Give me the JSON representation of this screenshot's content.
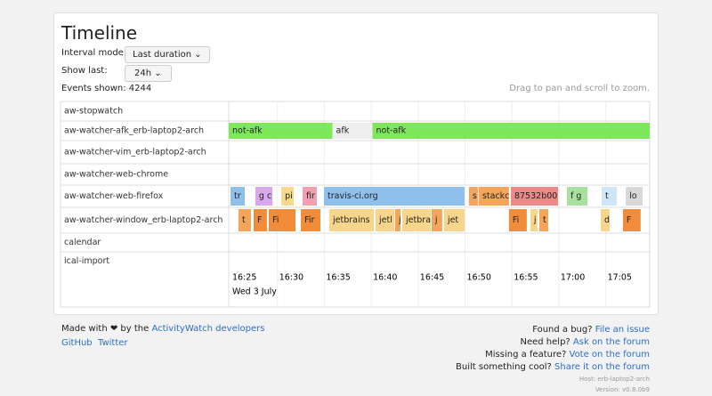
{
  "header": {
    "title": "Timeline"
  },
  "controls": {
    "interval_label": "Interval mode:",
    "interval_value": "Last duration",
    "show_label": "Show last:",
    "show_value": "24h",
    "events_label": "Events shown:",
    "events_count": "4244",
    "hint": "Drag to pan and scroll to zoom."
  },
  "timeline": {
    "rows": [
      {
        "label": "aw-stopwatch",
        "segments": []
      },
      {
        "label": "aw-watcher-afk_erb-laptop2-arch",
        "segments": [
          {
            "label": "not-afk",
            "start": "16:24:48",
            "end": "16:35:52",
            "color": "#7ce85a"
          },
          {
            "label": "afk",
            "start": "16:35:52",
            "end": "16:40:08",
            "color": "#eeeeee"
          },
          {
            "label": "not-afk",
            "start": "16:40:08",
            "end": "17:09:42",
            "color": "#7ce85a"
          }
        ]
      },
      {
        "label": "aw-watcher-vim_erb-laptop2-arch",
        "segments": []
      },
      {
        "label": "aw-watcher-web-chrome",
        "segments": []
      },
      {
        "label": "aw-watcher-web-firefox",
        "segments": [
          {
            "label": "tr",
            "start": "16:25:00",
            "end": "16:26:31",
            "color": "#8fc0ec"
          },
          {
            "label": "g c",
            "start": "16:27:39",
            "end": "16:29:28",
            "color": "#d9a8ec"
          },
          {
            "label": "pi",
            "start": "16:30:25",
            "end": "16:31:44",
            "color": "#f6d98a"
          },
          {
            "label": "fir",
            "start": "16:32:41",
            "end": "16:34:12",
            "color": "#f0a0b0"
          },
          {
            "label": "travis-ci.org",
            "start": "16:34:58",
            "end": "16:49:57",
            "color": "#8fc0ec"
          },
          {
            "label": "s",
            "start": "16:50:25",
            "end": "16:51:22",
            "color": "#f5a55a"
          },
          {
            "label": "stackc",
            "start": "16:51:28",
            "end": "16:54:41",
            "color": "#f5a55a"
          },
          {
            "label": "87532b00",
            "start": "16:54:53",
            "end": "16:59:55",
            "color": "#ec8a8a"
          },
          {
            "label": "f g",
            "start": "17:00:52",
            "end": "17:03:03",
            "color": "#a8e0a0"
          },
          {
            "label": "t",
            "start": "17:04:34",
            "end": "17:06:11",
            "color": "#cfe6f6"
          },
          {
            "label": "lo",
            "start": "17:07:08",
            "end": "17:08:56",
            "color": "#d8d8d8"
          }
        ]
      },
      {
        "label": "aw-watcher-window_erb-laptop2-arch",
        "segments": [
          {
            "label": "t",
            "start": "16:25:51",
            "end": "16:27:11",
            "color": "#f5a55a"
          },
          {
            "label": "F",
            "start": "16:27:28",
            "end": "16:28:53",
            "color": "#f08c3a"
          },
          {
            "label": "Fi",
            "start": "16:29:05",
            "end": "16:31:56",
            "color": "#f08c3a"
          },
          {
            "label": "Fir",
            "start": "16:32:30",
            "end": "16:34:35",
            "color": "#f08c3a"
          },
          {
            "label": "jetbrains",
            "start": "16:35:32",
            "end": "16:40:17",
            "color": "#f7d58a"
          },
          {
            "label": "jetl",
            "start": "16:40:28",
            "end": "16:42:28",
            "color": "#f7d58a"
          },
          {
            "label": "j",
            "start": "16:42:33",
            "end": "16:43:07",
            "color": "#f5a55a"
          },
          {
            "label": "jetbra",
            "start": "16:43:19",
            "end": "16:46:21",
            "color": "#f7d58a"
          },
          {
            "label": "j",
            "start": "16:46:26",
            "end": "16:47:34",
            "color": "#f5a55a"
          },
          {
            "label": "jet",
            "start": "16:47:46",
            "end": "16:49:57",
            "color": "#f7d58a"
          },
          {
            "label": "Fi",
            "start": "16:54:41",
            "end": "16:56:35",
            "color": "#f08c3a"
          },
          {
            "label": "j",
            "start": "16:56:58",
            "end": "16:57:43",
            "color": "#f7d58a"
          },
          {
            "label": "t",
            "start": "16:57:55",
            "end": "16:58:52",
            "color": "#f5a55a"
          },
          {
            "label": "d",
            "start": "17:04:28",
            "end": "17:05:25",
            "color": "#f7d58a"
          },
          {
            "label": "F",
            "start": "17:06:50",
            "end": "17:08:43",
            "color": "#f08c3a"
          }
        ]
      },
      {
        "label": "calendar",
        "segments": []
      },
      {
        "label": "ical-import",
        "segments": []
      }
    ],
    "ticks": [
      "16:25",
      "16:30",
      "16:35",
      "16:40",
      "16:45",
      "16:50",
      "16:55",
      "17:00",
      "17:05"
    ],
    "date": "Wed 3 July"
  },
  "footer": {
    "made": "Made with ❤ by the",
    "made_link": "ActivityWatch developers",
    "github": "GitHub",
    "twitter": "Twitter",
    "bug": "Found a bug?",
    "bug_link": "File an issue",
    "help": "Need help?",
    "help_link": "Ask on the forum",
    "feature": "Missing a feature?",
    "feature_link": "Vote on the forum",
    "built": "Built something cool?",
    "built_link": "Share it on the forum",
    "host": "Host: erb-laptop2-arch",
    "version": "Version: v0.8.0b9"
  }
}
